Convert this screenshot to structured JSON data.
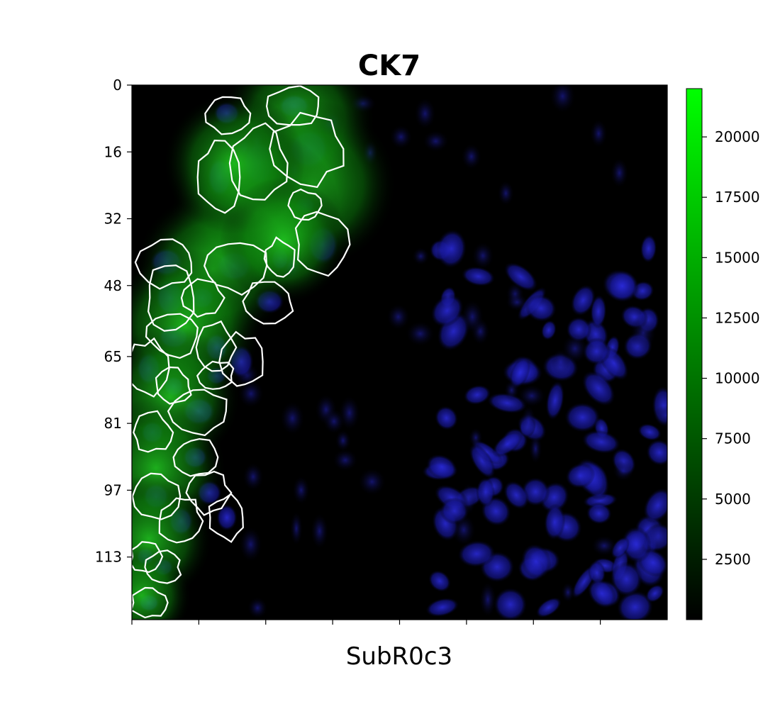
{
  "chart_data": {
    "type": "heatmap",
    "title": "CK7",
    "xlabel": "SubR0c3",
    "ylabel": "",
    "y_ticks": [
      0,
      16,
      32,
      48,
      65,
      81,
      97,
      113
    ],
    "x_ticks_labeled": false,
    "x_tick_count": 8,
    "image_extent_rows": 128,
    "colorbar": {
      "min": 0,
      "max": 22000,
      "ticks": [
        2500,
        5000,
        7500,
        10000,
        12500,
        15000,
        17500,
        20000
      ],
      "colormap": "black-to-green",
      "color_low": "#000000",
      "color_high": "#00ff00"
    },
    "channels": {
      "marker": "CK7",
      "marker_color": "#00ff00",
      "nuclear_color": "#1a1acc",
      "segmentation_outline_color": "#ffffff"
    },
    "region_notes": "CK7-positive epithelial cells concentrated on the left; nuclei (blue) scattered across the field, denser at lower right"
  }
}
